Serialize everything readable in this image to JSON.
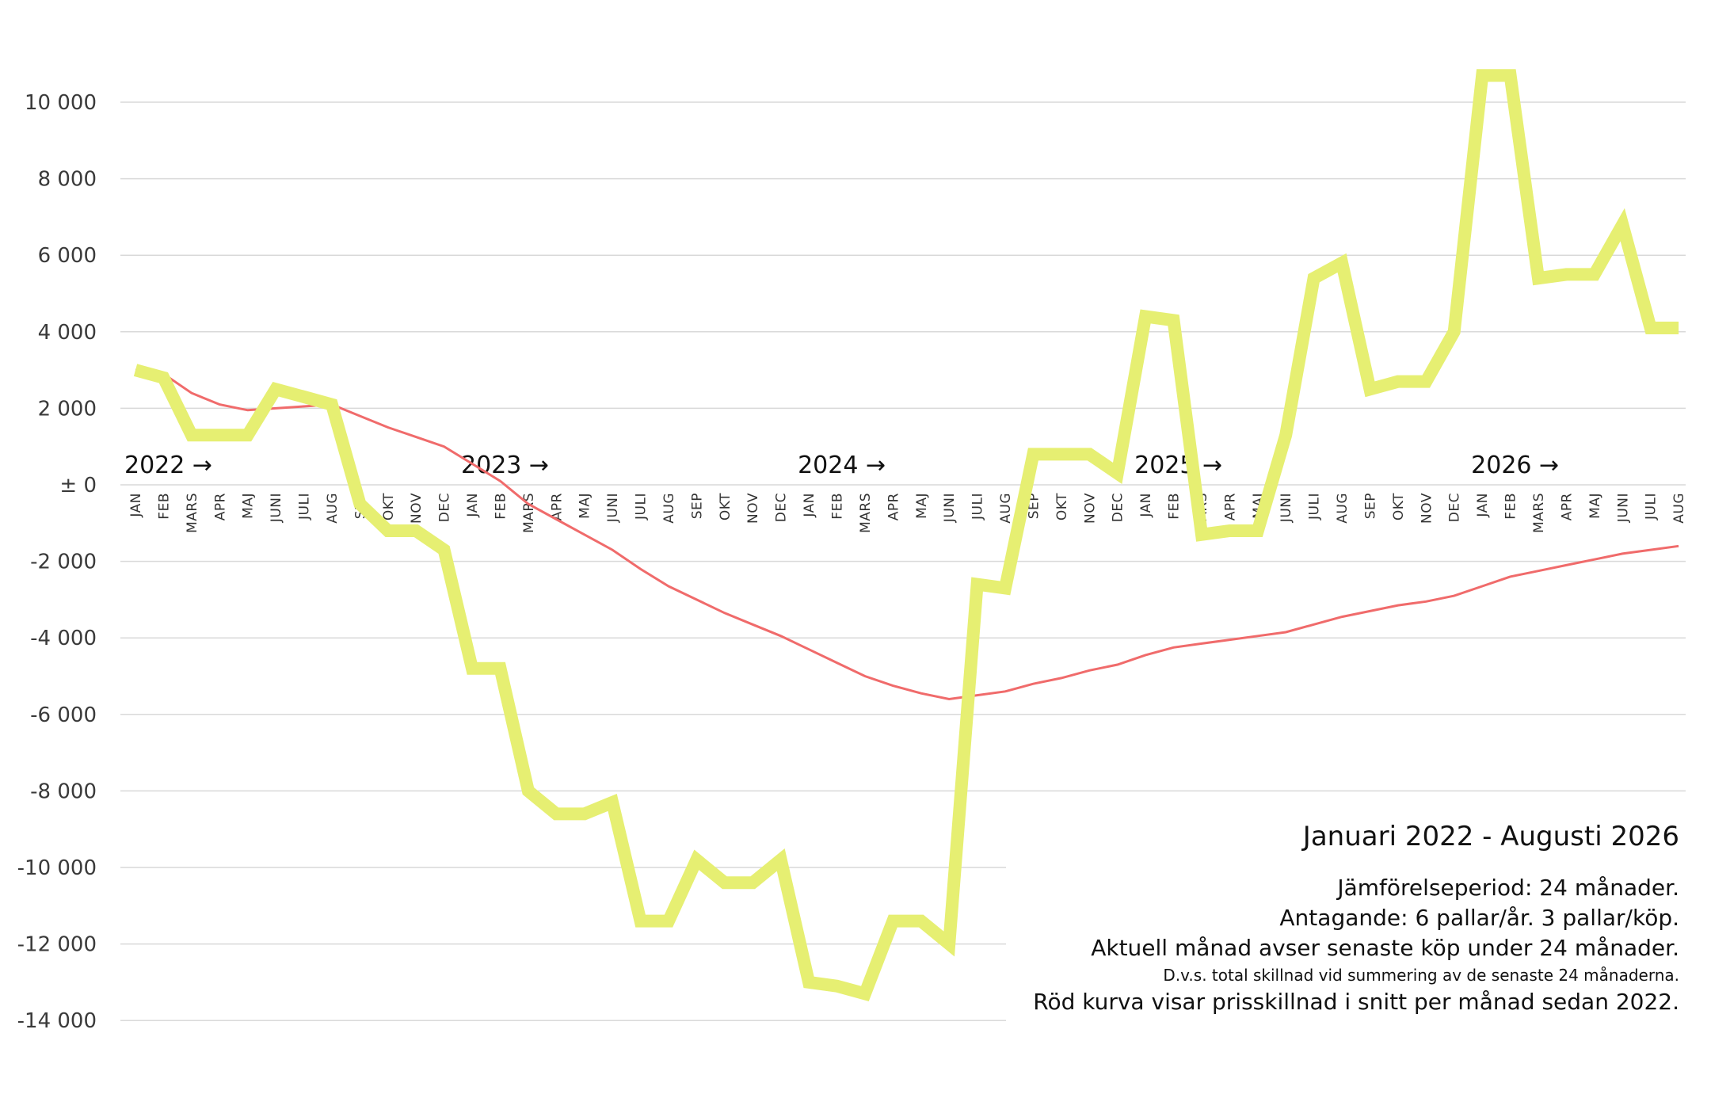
{
  "chart_data": {
    "type": "line",
    "title": "Januari 2022 - Augusti 2026",
    "notes": [
      "Jämförelseperiod: 24 månader.",
      "Antagande: 6 pallar/år. 3 pallar/köp.",
      "Aktuell månad avser senaste köp under 24 månader.",
      "D.v.s. total skillnad vid summering av de senaste 24 månaderna.",
      "Röd kurva visar prisskillnad i snitt per månad sedan 2022."
    ],
    "ylim": [
      -14000,
      10000
    ],
    "yticks": [
      10000,
      8000,
      6000,
      4000,
      2000,
      0,
      -2000,
      -4000,
      -6000,
      -8000,
      -10000,
      -12000,
      -14000
    ],
    "ytick_labels": [
      "10 000",
      "8 000",
      "6 000",
      "4 000",
      "2 000",
      "± 0",
      "-2 000",
      "-4 000",
      "-6 000",
      "-8 000",
      "-10 000",
      "-12 000",
      "-14 000"
    ],
    "grid": true,
    "year_labels": [
      {
        "label": "2022 →",
        "index": 0
      },
      {
        "label": "2023 →",
        "index": 12
      },
      {
        "label": "2024 →",
        "index": 24
      },
      {
        "label": "2025 →",
        "index": 36
      },
      {
        "label": "2026 →",
        "index": 48
      }
    ],
    "categories": [
      "JAN",
      "FEB",
      "MARS",
      "APR",
      "MAJ",
      "JUNI",
      "JULI",
      "AUG",
      "SEP",
      "OKT",
      "NOV",
      "DEC",
      "JAN",
      "FEB",
      "MARS",
      "APR",
      "MAJ",
      "JUNI",
      "JULI",
      "AUG",
      "SEP",
      "OKT",
      "NOV",
      "DEC",
      "JAN",
      "FEB",
      "MARS",
      "APR",
      "MAJ",
      "JUNI",
      "JULI",
      "AUG",
      "SEP",
      "OKT",
      "NOV",
      "DEC",
      "JAN",
      "FEB",
      "MARS",
      "APR",
      "MAJ",
      "JUNI",
      "JULI",
      "AUG",
      "SEP",
      "OKT",
      "NOV",
      "DEC",
      "JAN",
      "FEB",
      "MARS",
      "APR",
      "MAJ",
      "JUNI",
      "JULI",
      "AUG"
    ],
    "series": [
      {
        "color": "#e6ef72",
        "values": [
          3000,
          2800,
          1300,
          1300,
          1300,
          2500,
          2300,
          2100,
          -500,
          -1200,
          -1200,
          -1700,
          -4800,
          -4800,
          -8000,
          -8600,
          -8600,
          -8300,
          -11400,
          -11400,
          -9800,
          -10400,
          -10400,
          -9800,
          -13000,
          -13100,
          -13300,
          -11400,
          -11400,
          -12000,
          -2600,
          -2700,
          800,
          800,
          800,
          300,
          4400,
          4300,
          -1300,
          -1200,
          -1200,
          1300,
          5400,
          5800,
          2500,
          2700,
          2700,
          4000,
          10700,
          10700,
          5400,
          5500,
          5500,
          6800,
          4100,
          4100
        ]
      },
      {
        "color": "#f06b6b",
        "values": [
          3000,
          2900,
          2400,
          2100,
          1950,
          2000,
          2050,
          2100,
          1800,
          1500,
          1250,
          1000,
          550,
          100,
          -500,
          -900,
          -1300,
          -1700,
          -2200,
          -2650,
          -3000,
          -3350,
          -3650,
          -3950,
          -4300,
          -4650,
          -5000,
          -5250,
          -5450,
          -5600,
          -5500,
          -5400,
          -5200,
          -5050,
          -4850,
          -4700,
          -4450,
          -4250,
          -4150,
          -4050,
          -3950,
          -3850,
          -3650,
          -3450,
          -3300,
          -3150,
          -3050,
          -2900,
          -2650,
          -2400,
          -2250,
          -2100,
          -1950,
          -1800,
          -1700,
          -1600
        ]
      }
    ]
  }
}
